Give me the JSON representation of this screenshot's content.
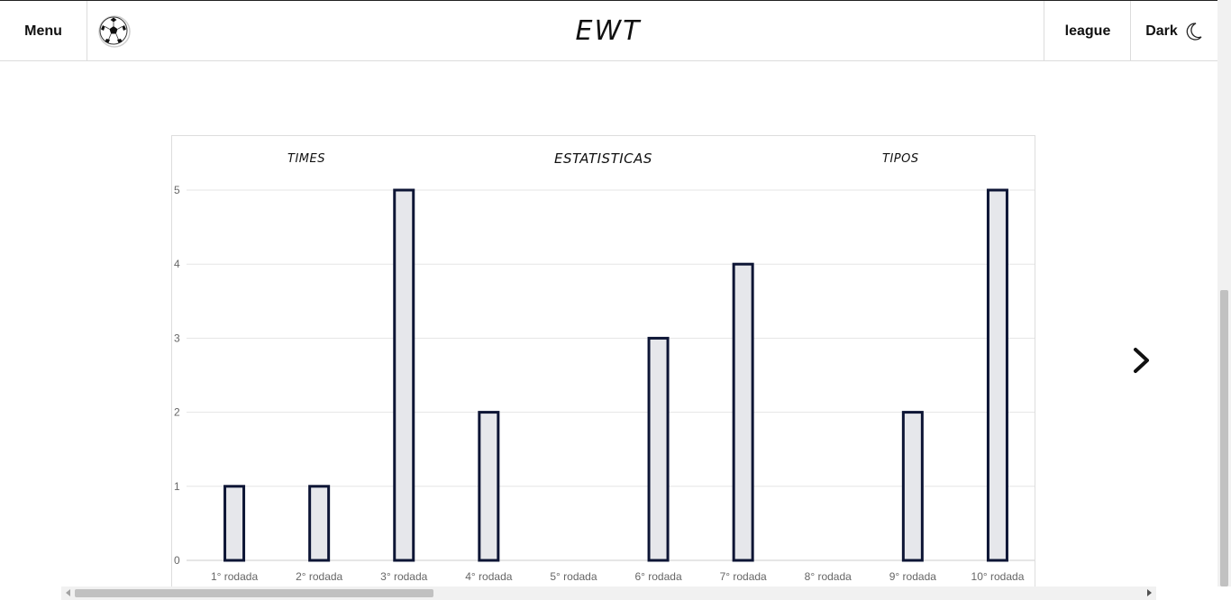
{
  "header": {
    "menu_label": "Menu",
    "logo_icon": "soccer-ball-icon",
    "brand": "EWT",
    "league_label": "league",
    "theme_label": "Dark",
    "theme_icon": "moon-icon"
  },
  "card": {
    "tabs": {
      "times": "TIMES",
      "title": "ESTATISTICAS",
      "tipos": "TIPOS"
    }
  },
  "nav": {
    "next_icon": "chevron-right-icon"
  },
  "colors": {
    "bar_fill": "#e6e7eb",
    "bar_stroke": "#0d1535",
    "grid": "#e5e5e5",
    "tick_text": "#666666"
  },
  "chart_data": {
    "type": "bar",
    "categories": [
      "1° rodada",
      "2° rodada",
      "3° rodada",
      "4° rodada",
      "5° rodada",
      "6° rodada",
      "7° rodada",
      "8° rodada",
      "9° rodada",
      "10° rodada"
    ],
    "values": [
      1,
      1,
      5,
      2,
      0,
      3,
      4,
      0,
      2,
      5
    ],
    "yticks": [
      0,
      1,
      2,
      3,
      4,
      5
    ],
    "ylim": [
      0,
      5
    ],
    "grid": true
  }
}
